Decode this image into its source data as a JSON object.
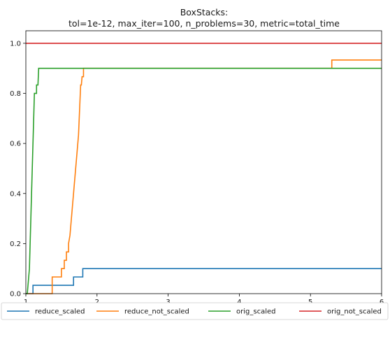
{
  "chart_data": {
    "type": "line",
    "title": "BoxStacks:",
    "subtitle": "tol=1e-12, max_iter=100, n_problems=30, metric=total_time",
    "xlabel": "",
    "ylabel": "",
    "xlim": [
      1,
      6
    ],
    "ylim": [
      0,
      1.05
    ],
    "x_ticks": [
      "1",
      "2",
      "3",
      "4",
      "5",
      "6"
    ],
    "y_ticks": [
      "0.0",
      "0.2",
      "0.4",
      "0.6",
      "0.8",
      "1.0"
    ],
    "grid": false,
    "step": true,
    "legend_position": "bottom",
    "series": [
      {
        "name": "reduce_scaled",
        "color": "#1f77b4",
        "points": [
          [
            1.0,
            0.0
          ],
          [
            1.1,
            0.0
          ],
          [
            1.1,
            0.0333
          ],
          [
            1.67,
            0.0333
          ],
          [
            1.67,
            0.0667
          ],
          [
            1.8,
            0.0667
          ],
          [
            1.8,
            0.1
          ],
          [
            6.0,
            0.1
          ]
        ]
      },
      {
        "name": "reduce_not_scaled",
        "color": "#ff7f0e",
        "points": [
          [
            1.0,
            0.0
          ],
          [
            1.37,
            0.0
          ],
          [
            1.37,
            0.0667
          ],
          [
            1.5,
            0.0667
          ],
          [
            1.5,
            0.1
          ],
          [
            1.54,
            0.1
          ],
          [
            1.54,
            0.1333
          ],
          [
            1.57,
            0.1333
          ],
          [
            1.57,
            0.1667
          ],
          [
            1.6,
            0.1667
          ],
          [
            1.6,
            0.2
          ],
          [
            1.62,
            0.2333
          ],
          [
            1.63,
            0.2667
          ],
          [
            1.64,
            0.3
          ],
          [
            1.65,
            0.3333
          ],
          [
            1.66,
            0.3667
          ],
          [
            1.67,
            0.4
          ],
          [
            1.68,
            0.4333
          ],
          [
            1.69,
            0.4667
          ],
          [
            1.7,
            0.5
          ],
          [
            1.71,
            0.5333
          ],
          [
            1.72,
            0.5667
          ],
          [
            1.73,
            0.6
          ],
          [
            1.74,
            0.6333
          ],
          [
            1.745,
            0.6667
          ],
          [
            1.75,
            0.7
          ],
          [
            1.755,
            0.7333
          ],
          [
            1.76,
            0.7667
          ],
          [
            1.765,
            0.8
          ],
          [
            1.77,
            0.8333
          ],
          [
            1.78,
            0.8333
          ],
          [
            1.79,
            0.8667
          ],
          [
            1.81,
            0.8667
          ],
          [
            1.81,
            0.9
          ],
          [
            5.3,
            0.9
          ],
          [
            5.3,
            0.9333
          ],
          [
            6.0,
            0.9333
          ]
        ]
      },
      {
        "name": "orig_scaled",
        "color": "#2ca02c",
        "points": [
          [
            1.0,
            0.0
          ],
          [
            1.02,
            0.0
          ],
          [
            1.03,
            0.0333
          ],
          [
            1.04,
            0.0667
          ],
          [
            1.05,
            0.1
          ],
          [
            1.06,
            0.2
          ],
          [
            1.07,
            0.3
          ],
          [
            1.08,
            0.4
          ],
          [
            1.09,
            0.5
          ],
          [
            1.1,
            0.6
          ],
          [
            1.11,
            0.7
          ],
          [
            1.12,
            0.8
          ],
          [
            1.15,
            0.8
          ],
          [
            1.15,
            0.8333
          ],
          [
            1.17,
            0.8333
          ],
          [
            1.18,
            0.9
          ],
          [
            6.0,
            0.9
          ]
        ]
      },
      {
        "name": "orig_not_scaled",
        "color": "#d62728",
        "points": [
          [
            1.0,
            1.0
          ],
          [
            6.0,
            1.0
          ]
        ]
      }
    ]
  }
}
